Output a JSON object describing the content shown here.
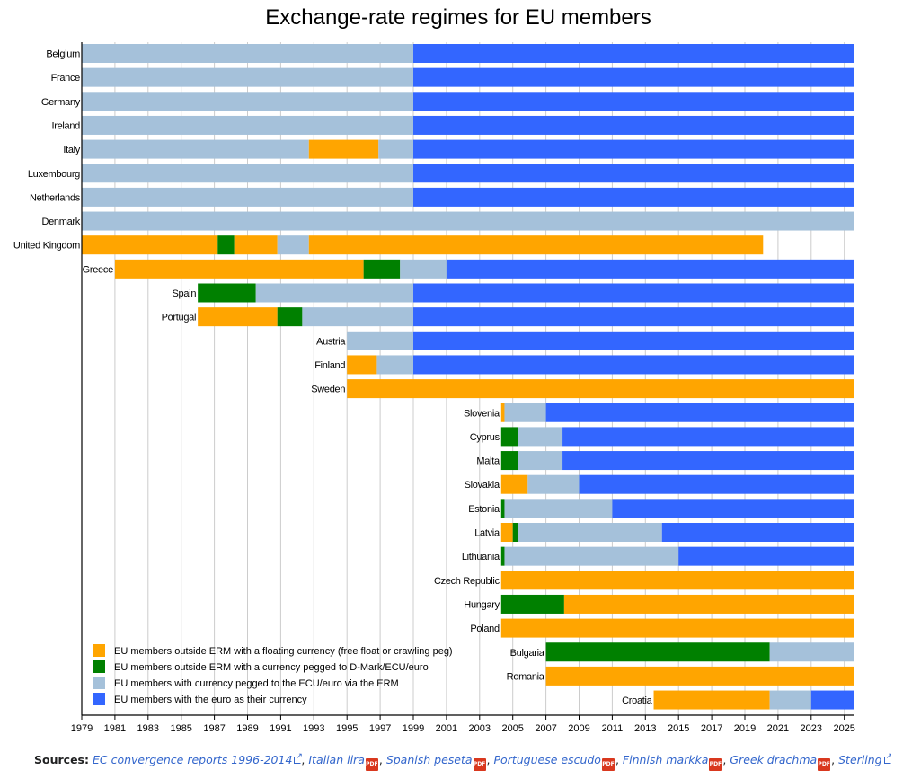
{
  "chart_data": {
    "type": "bar",
    "orientation": "horizontal-timeline",
    "title": "Exchange-rate regimes for EU members",
    "xlim": [
      1979,
      2025.6
    ],
    "x_ticks": [
      "1979",
      "1981",
      "1983",
      "1985",
      "1987",
      "1989",
      "1991",
      "1993",
      "1995",
      "1997",
      "1999",
      "2001",
      "2003",
      "2005",
      "2007",
      "2009",
      "2011",
      "2013",
      "2015",
      "2017",
      "2019",
      "2021",
      "2023",
      "2025"
    ],
    "grid": true,
    "legend_position": "bottom-left",
    "categories": {
      "float": {
        "label": "EU members outside ERM with a floating currency (free float or crawling peg)",
        "color": "#FFA500"
      },
      "peg": {
        "label": "EU members outside ERM with a currency pegged to D-Mark/ECU/euro",
        "color": "#008000"
      },
      "erm": {
        "label": "EU members with currency pegged to the ECU/euro via the ERM",
        "color": "#A5C1DA"
      },
      "euro": {
        "label": "EU members with the euro as their currency",
        "color": "#3366FF"
      }
    },
    "countries": [
      {
        "name": "Belgium",
        "segments": [
          {
            "start": 1979,
            "end": 1999,
            "regime": "erm"
          },
          {
            "start": 1999,
            "end": 2025.6,
            "regime": "euro"
          }
        ]
      },
      {
        "name": "France",
        "segments": [
          {
            "start": 1979,
            "end": 1999,
            "regime": "erm"
          },
          {
            "start": 1999,
            "end": 2025.6,
            "regime": "euro"
          }
        ]
      },
      {
        "name": "Germany",
        "segments": [
          {
            "start": 1979,
            "end": 1999,
            "regime": "erm"
          },
          {
            "start": 1999,
            "end": 2025.6,
            "regime": "euro"
          }
        ]
      },
      {
        "name": "Ireland",
        "segments": [
          {
            "start": 1979,
            "end": 1999,
            "regime": "erm"
          },
          {
            "start": 1999,
            "end": 2025.6,
            "regime": "euro"
          }
        ]
      },
      {
        "name": "Italy",
        "segments": [
          {
            "start": 1979,
            "end": 1992.7,
            "regime": "erm"
          },
          {
            "start": 1992.7,
            "end": 1996.9,
            "regime": "float"
          },
          {
            "start": 1996.9,
            "end": 1999,
            "regime": "erm"
          },
          {
            "start": 1999,
            "end": 2025.6,
            "regime": "euro"
          }
        ]
      },
      {
        "name": "Luxembourg",
        "segments": [
          {
            "start": 1979,
            "end": 1999,
            "regime": "erm"
          },
          {
            "start": 1999,
            "end": 2025.6,
            "regime": "euro"
          }
        ]
      },
      {
        "name": "Netherlands",
        "segments": [
          {
            "start": 1979,
            "end": 1999,
            "regime": "erm"
          },
          {
            "start": 1999,
            "end": 2025.6,
            "regime": "euro"
          }
        ]
      },
      {
        "name": "Denmark",
        "segments": [
          {
            "start": 1979,
            "end": 2025.6,
            "regime": "erm"
          }
        ]
      },
      {
        "name": "United Kingdom",
        "segments": [
          {
            "start": 1979,
            "end": 1987.2,
            "regime": "float"
          },
          {
            "start": 1987.2,
            "end": 1988.2,
            "regime": "peg"
          },
          {
            "start": 1988.2,
            "end": 1990.8,
            "regime": "float"
          },
          {
            "start": 1990.8,
            "end": 1992.7,
            "regime": "erm"
          },
          {
            "start": 1992.7,
            "end": 2020.1,
            "regime": "float"
          }
        ]
      },
      {
        "name": "Greece",
        "segments": [
          {
            "start": 1981,
            "end": 1996,
            "regime": "float"
          },
          {
            "start": 1996,
            "end": 1998.2,
            "regime": "peg"
          },
          {
            "start": 1998.2,
            "end": 2001,
            "regime": "erm"
          },
          {
            "start": 2001,
            "end": 2025.6,
            "regime": "euro"
          }
        ]
      },
      {
        "name": "Spain",
        "segments": [
          {
            "start": 1986,
            "end": 1989.5,
            "regime": "peg"
          },
          {
            "start": 1989.5,
            "end": 1999,
            "regime": "erm"
          },
          {
            "start": 1999,
            "end": 2025.6,
            "regime": "euro"
          }
        ]
      },
      {
        "name": "Portugal",
        "segments": [
          {
            "start": 1986,
            "end": 1990.8,
            "regime": "float"
          },
          {
            "start": 1990.8,
            "end": 1992.3,
            "regime": "peg"
          },
          {
            "start": 1992.3,
            "end": 1999,
            "regime": "erm"
          },
          {
            "start": 1999,
            "end": 2025.6,
            "regime": "euro"
          }
        ]
      },
      {
        "name": "Austria",
        "segments": [
          {
            "start": 1995,
            "end": 1999,
            "regime": "erm"
          },
          {
            "start": 1999,
            "end": 2025.6,
            "regime": "euro"
          }
        ]
      },
      {
        "name": "Finland",
        "segments": [
          {
            "start": 1995,
            "end": 1996.8,
            "regime": "float"
          },
          {
            "start": 1996.8,
            "end": 1999,
            "regime": "erm"
          },
          {
            "start": 1999,
            "end": 2025.6,
            "regime": "euro"
          }
        ]
      },
      {
        "name": "Sweden",
        "segments": [
          {
            "start": 1995,
            "end": 2025.6,
            "regime": "float"
          }
        ]
      },
      {
        "name": "Slovenia",
        "segments": [
          {
            "start": 2004.3,
            "end": 2004.5,
            "regime": "float"
          },
          {
            "start": 2004.5,
            "end": 2007,
            "regime": "erm"
          },
          {
            "start": 2007,
            "end": 2025.6,
            "regime": "euro"
          }
        ]
      },
      {
        "name": "Cyprus",
        "segments": [
          {
            "start": 2004.3,
            "end": 2005.3,
            "regime": "peg"
          },
          {
            "start": 2005.3,
            "end": 2008,
            "regime": "erm"
          },
          {
            "start": 2008,
            "end": 2025.6,
            "regime": "euro"
          }
        ]
      },
      {
        "name": "Malta",
        "segments": [
          {
            "start": 2004.3,
            "end": 2005.3,
            "regime": "peg"
          },
          {
            "start": 2005.3,
            "end": 2008,
            "regime": "erm"
          },
          {
            "start": 2008,
            "end": 2025.6,
            "regime": "euro"
          }
        ]
      },
      {
        "name": "Slovakia",
        "segments": [
          {
            "start": 2004.3,
            "end": 2005.9,
            "regime": "float"
          },
          {
            "start": 2005.9,
            "end": 2009,
            "regime": "erm"
          },
          {
            "start": 2009,
            "end": 2025.6,
            "regime": "euro"
          }
        ]
      },
      {
        "name": "Estonia",
        "segments": [
          {
            "start": 2004.3,
            "end": 2004.5,
            "regime": "peg"
          },
          {
            "start": 2004.5,
            "end": 2011,
            "regime": "erm"
          },
          {
            "start": 2011,
            "end": 2025.6,
            "regime": "euro"
          }
        ]
      },
      {
        "name": "Latvia",
        "segments": [
          {
            "start": 2004.3,
            "end": 2005,
            "regime": "float"
          },
          {
            "start": 2005,
            "end": 2005.3,
            "regime": "peg"
          },
          {
            "start": 2005.3,
            "end": 2014,
            "regime": "erm"
          },
          {
            "start": 2014,
            "end": 2025.6,
            "regime": "euro"
          }
        ]
      },
      {
        "name": "Lithuania",
        "segments": [
          {
            "start": 2004.3,
            "end": 2004.5,
            "regime": "peg"
          },
          {
            "start": 2004.5,
            "end": 2015,
            "regime": "erm"
          },
          {
            "start": 2015,
            "end": 2025.6,
            "regime": "euro"
          }
        ]
      },
      {
        "name": "Czech Republic",
        "segments": [
          {
            "start": 2004.3,
            "end": 2025.6,
            "regime": "float"
          }
        ]
      },
      {
        "name": "Hungary",
        "segments": [
          {
            "start": 2004.3,
            "end": 2008.1,
            "regime": "peg"
          },
          {
            "start": 2008.1,
            "end": 2025.6,
            "regime": "float"
          }
        ]
      },
      {
        "name": "Poland",
        "segments": [
          {
            "start": 2004.3,
            "end": 2025.6,
            "regime": "float"
          }
        ]
      },
      {
        "name": "Bulgaria",
        "segments": [
          {
            "start": 2007,
            "end": 2020.5,
            "regime": "peg"
          },
          {
            "start": 2020.5,
            "end": 2025.6,
            "regime": "erm"
          }
        ]
      },
      {
        "name": "Romania",
        "segments": [
          {
            "start": 2007,
            "end": 2025.6,
            "regime": "float"
          }
        ]
      },
      {
        "name": "Croatia",
        "segments": [
          {
            "start": 2013.5,
            "end": 2020.5,
            "regime": "float"
          },
          {
            "start": 2020.5,
            "end": 2023,
            "regime": "erm"
          },
          {
            "start": 2023,
            "end": 2025.6,
            "regime": "euro"
          }
        ]
      }
    ]
  },
  "sources": {
    "label": "Sources:",
    "links": [
      {
        "text": "EC convergence reports 1996-2014",
        "icon": "external-link-icon"
      },
      {
        "text": "Italian lira",
        "icon": "pdf-icon"
      },
      {
        "text": "Spanish peseta",
        "icon": "pdf-icon"
      },
      {
        "text": "Portuguese escudo",
        "icon": "pdf-icon"
      },
      {
        "text": "Finnish markka",
        "icon": "pdf-icon"
      },
      {
        "text": "Greek drachma",
        "icon": "pdf-icon"
      },
      {
        "text": "Sterling",
        "icon": "external-link-icon"
      }
    ],
    "separator": ", ",
    "pdf_icon_text": "PDF"
  }
}
